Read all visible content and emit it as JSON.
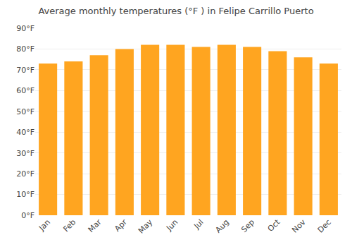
{
  "chart_data": {
    "type": "bar",
    "title": "Average monthly temperatures (°F ) in Felipe Carrillo Puerto",
    "categories": [
      "Jan",
      "Feb",
      "Mar",
      "Apr",
      "May",
      "Jun",
      "Jul",
      "Aug",
      "Sep",
      "Oct",
      "Nov",
      "Dec"
    ],
    "values": [
      73,
      74,
      77,
      80,
      82,
      82,
      81,
      82,
      81,
      79,
      76,
      73
    ],
    "color": "#FFA520",
    "ylim": [
      0,
      90
    ],
    "yticks": [
      {
        "value": 0,
        "label": "0°F"
      },
      {
        "value": 10,
        "label": "10°F"
      },
      {
        "value": 20,
        "label": "20°F"
      },
      {
        "value": 30,
        "label": "30°F"
      },
      {
        "value": 40,
        "label": "40°F"
      },
      {
        "value": 50,
        "label": "50°F"
      },
      {
        "value": 60,
        "label": "60°F"
      },
      {
        "value": 70,
        "label": "70°F"
      },
      {
        "value": 80,
        "label": "80°F"
      },
      {
        "value": 90,
        "label": "90°F"
      }
    ],
    "grid": true
  }
}
